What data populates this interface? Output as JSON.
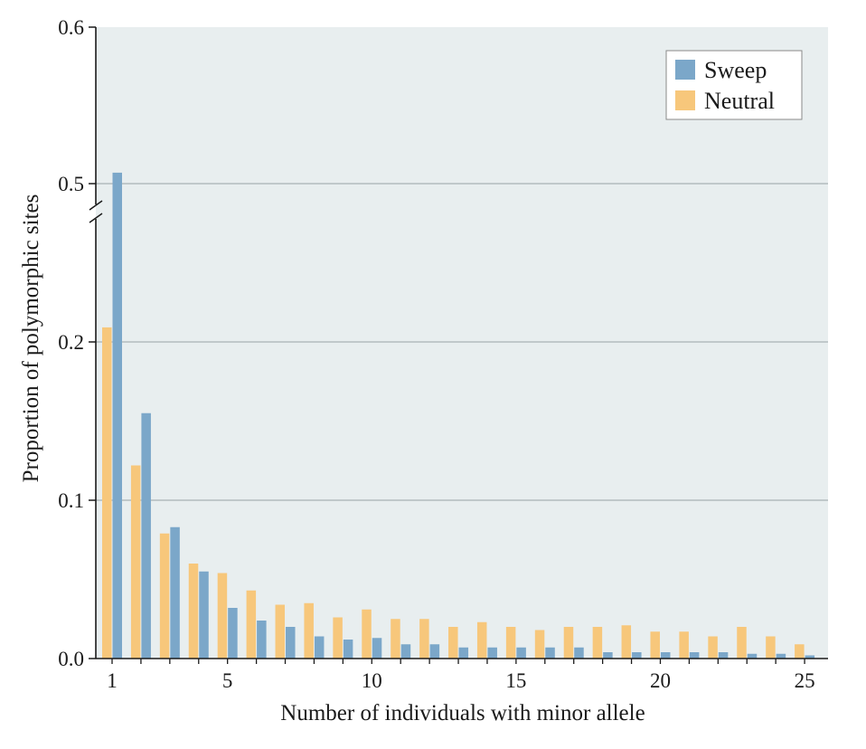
{
  "colors": {
    "sweep": "#7ba7c9",
    "neutral": "#f7c77b",
    "plot_background": "#e8eeef",
    "gridline": "#a9b1b5",
    "axis": "#1a1a1a"
  },
  "chart_data": {
    "type": "bar",
    "xlabel": "Number of individuals with minor allele",
    "ylabel": "Proportion of polymorphic sites",
    "x_ticks": [
      "1",
      "5",
      "10",
      "15",
      "20",
      "25"
    ],
    "y_ticks": [
      "0.0",
      "0.1",
      "0.2",
      "0.5",
      "0.6"
    ],
    "y_scale": "broken axis: linear 0.0 to 0.2 below the break, then 0.5 to 0.6 above it",
    "ylim": [
      0,
      0.6
    ],
    "grid": "horizontal gridlines at 0.1, 0.2 and 0.5",
    "legend_position": "top-right",
    "categories": [
      1,
      2,
      3,
      4,
      5,
      6,
      7,
      8,
      9,
      10,
      11,
      12,
      13,
      14,
      15,
      16,
      17,
      18,
      19,
      20,
      21,
      22,
      23,
      24,
      25
    ],
    "series": [
      {
        "name": "Neutral",
        "color_key": "neutral",
        "values": [
          0.235,
          0.122,
          0.079,
          0.06,
          0.054,
          0.043,
          0.034,
          0.035,
          0.026,
          0.031,
          0.025,
          0.025,
          0.02,
          0.023,
          0.02,
          0.018,
          0.02,
          0.02,
          0.021,
          0.017,
          0.017,
          0.014,
          0.02,
          0.014,
          0.009
        ]
      },
      {
        "name": "Sweep",
        "color_key": "sweep",
        "values": [
          0.507,
          0.155,
          0.083,
          0.055,
          0.032,
          0.024,
          0.02,
          0.014,
          0.012,
          0.013,
          0.009,
          0.009,
          0.007,
          0.007,
          0.007,
          0.007,
          0.007,
          0.004,
          0.004,
          0.004,
          0.004,
          0.004,
          0.003,
          0.003,
          0.002
        ]
      }
    ]
  }
}
